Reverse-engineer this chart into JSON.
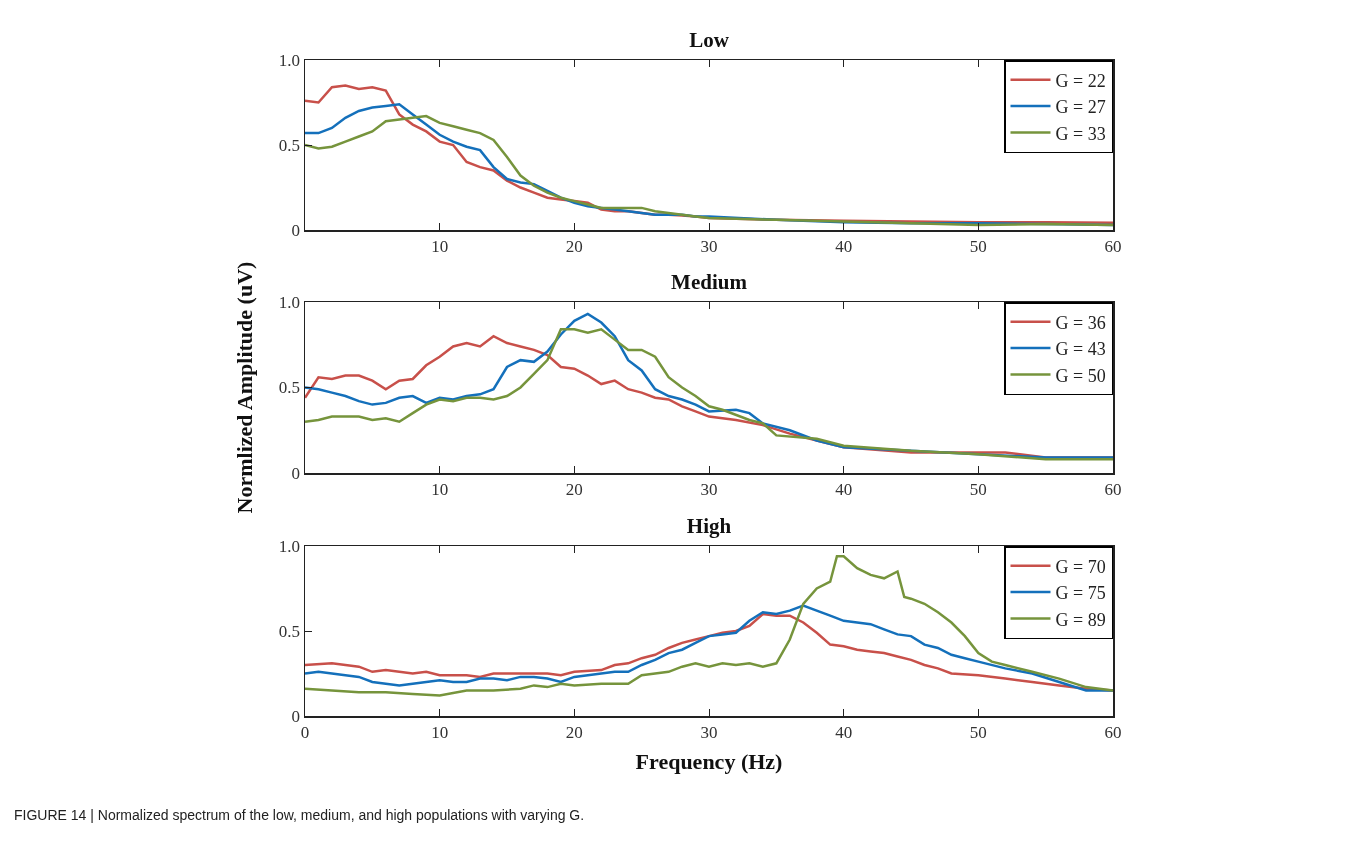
{
  "chart_data": [
    {
      "type": "line",
      "title": "Low",
      "xlim": [
        0,
        60
      ],
      "xticks": [
        10,
        20,
        30,
        40,
        50,
        60
      ],
      "ylim": [
        0,
        1
      ],
      "yticks": [
        {
          "value": 0,
          "label": "0"
        },
        {
          "value": 0.5,
          "label": "0.5"
        },
        {
          "value": 1,
          "label": "1.0"
        }
      ],
      "legend": "top right",
      "series": [
        {
          "name": "G = 22",
          "color": "#c8504a",
          "x": [
            0,
            1,
            2,
            3,
            4,
            5,
            6,
            7,
            8,
            9,
            10,
            11,
            12,
            13,
            14,
            15,
            16,
            17,
            18,
            19,
            20,
            21,
            22,
            23,
            24,
            25,
            26,
            27,
            28,
            29,
            30,
            35,
            40,
            45,
            50,
            55,
            60
          ],
          "values": [
            0.76,
            0.75,
            0.84,
            0.85,
            0.83,
            0.84,
            0.82,
            0.68,
            0.62,
            0.58,
            0.52,
            0.5,
            0.4,
            0.37,
            0.35,
            0.29,
            0.25,
            0.22,
            0.19,
            0.18,
            0.17,
            0.16,
            0.12,
            0.11,
            0.11,
            0.1,
            0.09,
            0.09,
            0.085,
            0.08,
            0.07,
            0.06,
            0.055,
            0.05,
            0.045,
            0.045,
            0.042
          ]
        },
        {
          "name": "G = 27",
          "color": "#1470bb",
          "x": [
            0,
            1,
            2,
            3,
            4,
            5,
            6,
            7,
            8,
            9,
            10,
            11,
            12,
            13,
            14,
            15,
            16,
            17,
            18,
            19,
            20,
            21,
            22,
            23,
            24,
            25,
            26,
            27,
            28,
            29,
            30,
            35,
            40,
            45,
            50,
            55,
            60
          ],
          "values": [
            0.57,
            0.57,
            0.6,
            0.66,
            0.7,
            0.72,
            0.73,
            0.74,
            0.68,
            0.62,
            0.56,
            0.52,
            0.49,
            0.47,
            0.37,
            0.3,
            0.28,
            0.27,
            0.23,
            0.19,
            0.16,
            0.14,
            0.13,
            0.12,
            0.11,
            0.1,
            0.09,
            0.09,
            0.09,
            0.08,
            0.08,
            0.06,
            0.045,
            0.04,
            0.04,
            0.035,
            0.03
          ]
        },
        {
          "name": "G = 33",
          "color": "#76943c",
          "x": [
            0,
            1,
            2,
            3,
            4,
            5,
            6,
            7,
            8,
            9,
            10,
            11,
            12,
            13,
            14,
            15,
            16,
            17,
            18,
            19,
            20,
            21,
            22,
            23,
            24,
            25,
            26,
            27,
            28,
            29,
            30,
            35,
            40,
            45,
            50,
            55,
            60
          ],
          "values": [
            0.5,
            0.48,
            0.49,
            0.52,
            0.55,
            0.58,
            0.64,
            0.65,
            0.66,
            0.67,
            0.63,
            0.61,
            0.59,
            0.57,
            0.53,
            0.43,
            0.32,
            0.26,
            0.22,
            0.19,
            0.17,
            0.15,
            0.13,
            0.13,
            0.13,
            0.13,
            0.11,
            0.1,
            0.09,
            0.08,
            0.07,
            0.06,
            0.05,
            0.04,
            0.03,
            0.035,
            0.03
          ]
        }
      ]
    },
    {
      "type": "line",
      "title": "Medium",
      "ylabel": "Normlized Amplitude (uV)",
      "xlim": [
        0,
        60
      ],
      "xticks": [
        10,
        20,
        30,
        40,
        50,
        60
      ],
      "ylim": [
        0,
        1
      ],
      "yticks": [
        {
          "value": 0,
          "label": "0"
        },
        {
          "value": 0.5,
          "label": "0.5"
        },
        {
          "value": 1,
          "label": "1.0"
        }
      ],
      "legend": "top right",
      "series": [
        {
          "name": "G = 36",
          "color": "#c8504a",
          "x": [
            0,
            1,
            2,
            3,
            4,
            5,
            6,
            7,
            8,
            9,
            10,
            11,
            12,
            13,
            14,
            15,
            16,
            17,
            18,
            19,
            20,
            21,
            22,
            23,
            24,
            25,
            26,
            27,
            28,
            29,
            30,
            32,
            34,
            36,
            38,
            40,
            45,
            50,
            52,
            55,
            60
          ],
          "values": [
            0.44,
            0.56,
            0.55,
            0.57,
            0.57,
            0.54,
            0.49,
            0.54,
            0.55,
            0.63,
            0.68,
            0.74,
            0.76,
            0.74,
            0.8,
            0.76,
            0.74,
            0.72,
            0.69,
            0.62,
            0.61,
            0.57,
            0.52,
            0.54,
            0.49,
            0.47,
            0.44,
            0.43,
            0.39,
            0.36,
            0.33,
            0.31,
            0.28,
            0.23,
            0.19,
            0.15,
            0.12,
            0.12,
            0.12,
            0.09,
            0.09
          ]
        },
        {
          "name": "G = 43",
          "color": "#1470bb",
          "x": [
            0,
            1,
            2,
            3,
            4,
            5,
            6,
            7,
            8,
            9,
            10,
            11,
            12,
            13,
            14,
            15,
            16,
            17,
            18,
            19,
            20,
            21,
            22,
            23,
            24,
            25,
            26,
            27,
            28,
            29,
            30,
            32,
            33,
            34,
            36,
            38,
            40,
            45,
            50,
            55,
            60
          ],
          "values": [
            0.5,
            0.49,
            0.47,
            0.45,
            0.42,
            0.4,
            0.41,
            0.44,
            0.45,
            0.41,
            0.44,
            0.43,
            0.45,
            0.46,
            0.49,
            0.62,
            0.66,
            0.65,
            0.71,
            0.81,
            0.89,
            0.93,
            0.88,
            0.8,
            0.66,
            0.6,
            0.49,
            0.45,
            0.43,
            0.4,
            0.36,
            0.37,
            0.35,
            0.29,
            0.25,
            0.19,
            0.15,
            0.13,
            0.11,
            0.09,
            0.09
          ]
        },
        {
          "name": "G = 50",
          "color": "#76943c",
          "x": [
            0,
            1,
            2,
            3,
            4,
            5,
            6,
            7,
            8,
            9,
            10,
            11,
            12,
            13,
            14,
            15,
            16,
            17,
            18,
            19,
            20,
            21,
            22,
            23,
            24,
            25,
            26,
            27,
            28,
            29,
            30,
            31,
            33,
            34,
            35,
            38,
            40,
            45,
            50,
            55,
            60
          ],
          "values": [
            0.3,
            0.31,
            0.33,
            0.33,
            0.33,
            0.31,
            0.32,
            0.3,
            0.35,
            0.4,
            0.43,
            0.42,
            0.44,
            0.44,
            0.43,
            0.45,
            0.5,
            0.58,
            0.66,
            0.84,
            0.84,
            0.82,
            0.84,
            0.78,
            0.72,
            0.72,
            0.68,
            0.56,
            0.5,
            0.45,
            0.39,
            0.37,
            0.31,
            0.29,
            0.22,
            0.2,
            0.16,
            0.13,
            0.11,
            0.08,
            0.08
          ]
        }
      ]
    },
    {
      "type": "line",
      "title": "High",
      "xlabel": "Frequency (Hz)",
      "xlim": [
        0,
        60
      ],
      "xticks": [
        {
          "value": 0,
          "label": "0"
        },
        10,
        20,
        30,
        40,
        50,
        60
      ],
      "ylim": [
        0,
        1
      ],
      "yticks": [
        {
          "value": 0,
          "label": "0"
        },
        {
          "value": 0.5,
          "label": "0.5"
        },
        {
          "value": 1,
          "label": "1.0"
        }
      ],
      "legend": "top right",
      "annotations": [
        "FIGURE 14 | Normalized spectrum of the low, medium, and high populations with varying G."
      ],
      "series": [
        {
          "name": "G = 70",
          "color": "#c8504a",
          "x": [
            0,
            2,
            4,
            5,
            6,
            8,
            9,
            10,
            12,
            13,
            14,
            16,
            18,
            19,
            20,
            22,
            23,
            24,
            25,
            26,
            27,
            28,
            29,
            30,
            31,
            32,
            33,
            34,
            35,
            36,
            37,
            38,
            39,
            40,
            41,
            42,
            43,
            44,
            45,
            46,
            47,
            48,
            50,
            52,
            54,
            56,
            58,
            60
          ],
          "values": [
            0.3,
            0.31,
            0.29,
            0.26,
            0.27,
            0.25,
            0.26,
            0.24,
            0.24,
            0.23,
            0.25,
            0.25,
            0.25,
            0.24,
            0.26,
            0.27,
            0.3,
            0.31,
            0.34,
            0.36,
            0.4,
            0.43,
            0.45,
            0.47,
            0.49,
            0.5,
            0.53,
            0.6,
            0.59,
            0.59,
            0.55,
            0.49,
            0.42,
            0.41,
            0.39,
            0.38,
            0.37,
            0.35,
            0.33,
            0.3,
            0.28,
            0.25,
            0.24,
            0.22,
            0.2,
            0.18,
            0.16,
            0.15
          ]
        },
        {
          "name": "G = 75",
          "color": "#1470bb",
          "x": [
            0,
            1,
            2,
            3,
            4,
            5,
            6,
            7,
            8,
            9,
            10,
            11,
            12,
            13,
            14,
            15,
            16,
            17,
            18,
            19,
            20,
            21,
            22,
            23,
            24,
            25,
            26,
            27,
            28,
            29,
            30,
            31,
            32,
            33,
            34,
            35,
            36,
            37,
            38,
            39,
            40,
            41,
            42,
            43,
            44,
            45,
            46,
            47,
            48,
            49,
            50,
            52,
            54,
            56,
            58,
            60
          ],
          "values": [
            0.25,
            0.26,
            0.25,
            0.24,
            0.23,
            0.2,
            0.19,
            0.18,
            0.19,
            0.2,
            0.21,
            0.2,
            0.2,
            0.22,
            0.22,
            0.21,
            0.23,
            0.23,
            0.22,
            0.2,
            0.23,
            0.24,
            0.25,
            0.26,
            0.26,
            0.3,
            0.33,
            0.37,
            0.39,
            0.43,
            0.47,
            0.48,
            0.49,
            0.56,
            0.61,
            0.6,
            0.62,
            0.65,
            0.62,
            0.59,
            0.56,
            0.55,
            0.54,
            0.51,
            0.48,
            0.47,
            0.42,
            0.4,
            0.36,
            0.34,
            0.32,
            0.28,
            0.25,
            0.2,
            0.15,
            0.15
          ]
        },
        {
          "name": "G = 89",
          "color": "#76943c",
          "x": [
            0,
            2,
            4,
            6,
            8,
            10,
            12,
            14,
            16,
            17,
            18,
            19,
            20,
            22,
            24,
            25,
            26,
            27,
            28,
            29,
            30,
            31,
            32,
            33,
            34,
            35,
            36,
            37,
            38,
            39,
            39.5,
            40,
            41,
            42,
            43,
            44,
            44.5,
            45,
            46,
            47,
            48,
            49,
            50,
            51,
            52,
            54,
            56,
            58,
            60
          ],
          "values": [
            0.16,
            0.15,
            0.14,
            0.14,
            0.13,
            0.12,
            0.15,
            0.15,
            0.16,
            0.18,
            0.17,
            0.19,
            0.18,
            0.19,
            0.19,
            0.24,
            0.25,
            0.26,
            0.29,
            0.31,
            0.29,
            0.31,
            0.3,
            0.31,
            0.29,
            0.31,
            0.45,
            0.66,
            0.75,
            0.79,
            0.94,
            0.94,
            0.87,
            0.83,
            0.81,
            0.85,
            0.7,
            0.69,
            0.66,
            0.61,
            0.55,
            0.47,
            0.37,
            0.32,
            0.3,
            0.26,
            0.22,
            0.17,
            0.15
          ]
        }
      ]
    }
  ]
}
